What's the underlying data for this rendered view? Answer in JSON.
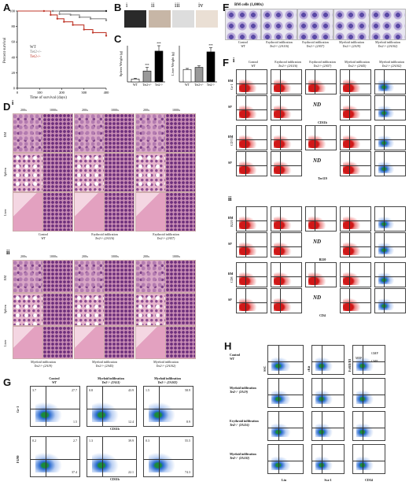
{
  "panel_labels": {
    "A": "A",
    "B": "B",
    "C": "C",
    "D": "D",
    "E": "E",
    "F": "F",
    "G": "G",
    "H": "H"
  },
  "survival": {
    "ylabel": "Percent survival",
    "xlabel": "Time of survival (days)",
    "y_ticks": [
      "100",
      "80",
      "60",
      "40",
      "20",
      "0"
    ],
    "x_ticks": [
      "0",
      "100",
      "200",
      "300",
      "400"
    ],
    "legend": [
      "WT",
      "Tet2+/-",
      "Tet2-/-"
    ],
    "series": [
      {
        "name": "WT",
        "color": "#222222",
        "points": [
          [
            0,
            100
          ],
          [
            400,
            100
          ]
        ]
      },
      {
        "name": "Tet2+/-",
        "color": "#888888",
        "points": [
          [
            0,
            100
          ],
          [
            160,
            100
          ],
          [
            190,
            96
          ],
          [
            240,
            95
          ],
          [
            280,
            92
          ],
          [
            330,
            90
          ],
          [
            400,
            88
          ]
        ]
      },
      {
        "name": "Tet2-/-",
        "color": "#c0392b",
        "points": [
          [
            0,
            100
          ],
          [
            120,
            100
          ],
          [
            150,
            95
          ],
          [
            180,
            90
          ],
          [
            210,
            86
          ],
          [
            250,
            82
          ],
          [
            300,
            76
          ],
          [
            340,
            72
          ],
          [
            400,
            68
          ]
        ]
      }
    ]
  },
  "panel_B": {
    "subs": [
      "i",
      "ii",
      "iii",
      "iv"
    ],
    "captions": [
      "WT",
      "Tet2-/-\n(2A48)",
      "WT",
      "Tet2-/-\n(2A48)",
      "WT",
      "Tet2-/-\n(2A48)",
      "WT",
      "Tet2-/-\n(2A48)"
    ]
  },
  "chart_data": [
    {
      "type": "bar",
      "title": "",
      "ylabel": "Spleen Weight (g)",
      "categories": [
        "WT",
        "Tet2+/-",
        "Tet2-/-"
      ],
      "values": [
        0.08,
        0.3,
        0.85
      ],
      "errors": [
        0.02,
        0.1,
        0.15
      ],
      "ylim": [
        0,
        1
      ],
      "sig": [
        "",
        "***",
        "***"
      ]
    },
    {
      "type": "bar",
      "title": "",
      "ylabel": "Liver Weight (g)",
      "categories": [
        "WT",
        "Tet2+/-",
        "Tet2-/-"
      ],
      "values": [
        1.2,
        1.4,
        2.9
      ],
      "errors": [
        0.1,
        0.15,
        0.4
      ],
      "ylim": [
        0,
        3.5
      ],
      "sig": [
        "",
        "",
        "***"
      ]
    }
  ],
  "panel_D": {
    "mag": [
      "200x",
      "1000x"
    ],
    "rows": [
      "BM",
      "Spleen",
      "Liver"
    ],
    "i_cols": [
      [
        "Control",
        "WT"
      ],
      [
        "Erythroid infiltration",
        "Tet2-/- (2A116)"
      ],
      [
        "Erythroid infiltration",
        "Tet2-/- (2A57)"
      ]
    ],
    "ii_cols": [
      [
        "Myeloid infiltration",
        "Tet2-/- (2A19)"
      ],
      [
        "Myeloid infiltration",
        "Tet2-/- (2A45)"
      ],
      [
        "Myeloid infiltration",
        "Tet2-/- (2A102)"
      ]
    ],
    "sub_i": "i",
    "sub_ii": "ii"
  },
  "panel_E": {
    "title": "BM cells (1,000x)",
    "cols": [
      [
        "Control",
        "WT"
      ],
      [
        "Erythroid infiltration",
        "Tet2-/- (2A116)"
      ],
      [
        "Erythroid infiltration",
        "Tet2-/- (2A57)"
      ],
      [
        "Myeloid infiltration",
        "Tet2-/- (2A19)"
      ],
      [
        "Myeloid infiltration",
        "Tet2-/- (2A102)"
      ]
    ]
  },
  "panel_F": {
    "sub_i": "i",
    "sub_ii": "ii",
    "cols": [
      [
        "Control",
        "WT"
      ],
      [
        "Erythroid infiltration",
        "Tet2-/- (2A116)"
      ],
      [
        "Erythroid infiltration",
        "Tet2-/- (2A57)"
      ],
      [
        "Myeloid infiltration",
        "Tet2-/- (2A45)"
      ],
      [
        "Myeloid infiltration",
        "Tet2-/- (2A102)"
      ]
    ],
    "rows": [
      "BM",
      "SP",
      "BM",
      "SP",
      "BM",
      "SP",
      "BM",
      "SP"
    ],
    "yaxes": [
      "Gr-1",
      "CD71",
      "B220",
      "CD8"
    ],
    "xaxes": [
      "CD11b",
      "Ter119",
      "B220",
      "CD4"
    ],
    "nd": "ND"
  },
  "panel_G": {
    "cols": [
      [
        "Control",
        "WT"
      ],
      [
        "Myeloid infiltration",
        "Tet2-/- (2A53)"
      ],
      [
        "Myeloid infiltration",
        "Tet2-/- (2A102)"
      ]
    ],
    "ylabels": [
      "Gr-1",
      "F4/80"
    ],
    "xlabels": [
      "CD11b",
      "CD11b"
    ],
    "row1": [
      [
        "3.7",
        "27.7",
        "1.5"
      ],
      [
        "0.8",
        "43.9",
        "12.4"
      ],
      [
        "1.5",
        "58.9",
        "8.9"
      ]
    ],
    "row2": [
      [
        "0.2",
        "2.7",
        "37.4"
      ],
      [
        "1.3",
        "39.9",
        "22.1"
      ],
      [
        "0.3",
        "55.5",
        "74.3"
      ]
    ]
  },
  "panel_H": {
    "rows": [
      [
        "Control",
        "WT"
      ],
      [
        "Myeloid infiltration",
        "Tet2-/- (2A19)"
      ],
      [
        "Erythroid infiltration",
        "Tet2-/- (2A116)"
      ],
      [
        "Myeloid infiltration",
        "Tet2-/- (2A102)"
      ]
    ],
    "ylabels": [
      "SSC",
      "cKit",
      "FcRII/III"
    ],
    "xlabels": [
      "Lin",
      "Sca-1",
      "CD34"
    ],
    "gates": [
      "GMP",
      "CMP",
      "MEP"
    ]
  }
}
